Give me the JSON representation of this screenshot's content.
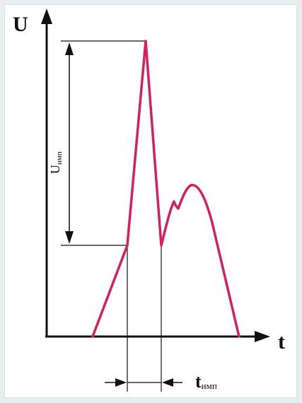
{
  "axes": {
    "y_label": "U",
    "x_label": "t"
  },
  "annotations": {
    "voltage_label": "U",
    "voltage_subscript": "имп",
    "time_label": "t",
    "time_subscript": "имп"
  },
  "colors": {
    "curve": "#d6205e",
    "ink": "#111111",
    "background": "#e6efef",
    "panel": "#ffffff"
  }
}
